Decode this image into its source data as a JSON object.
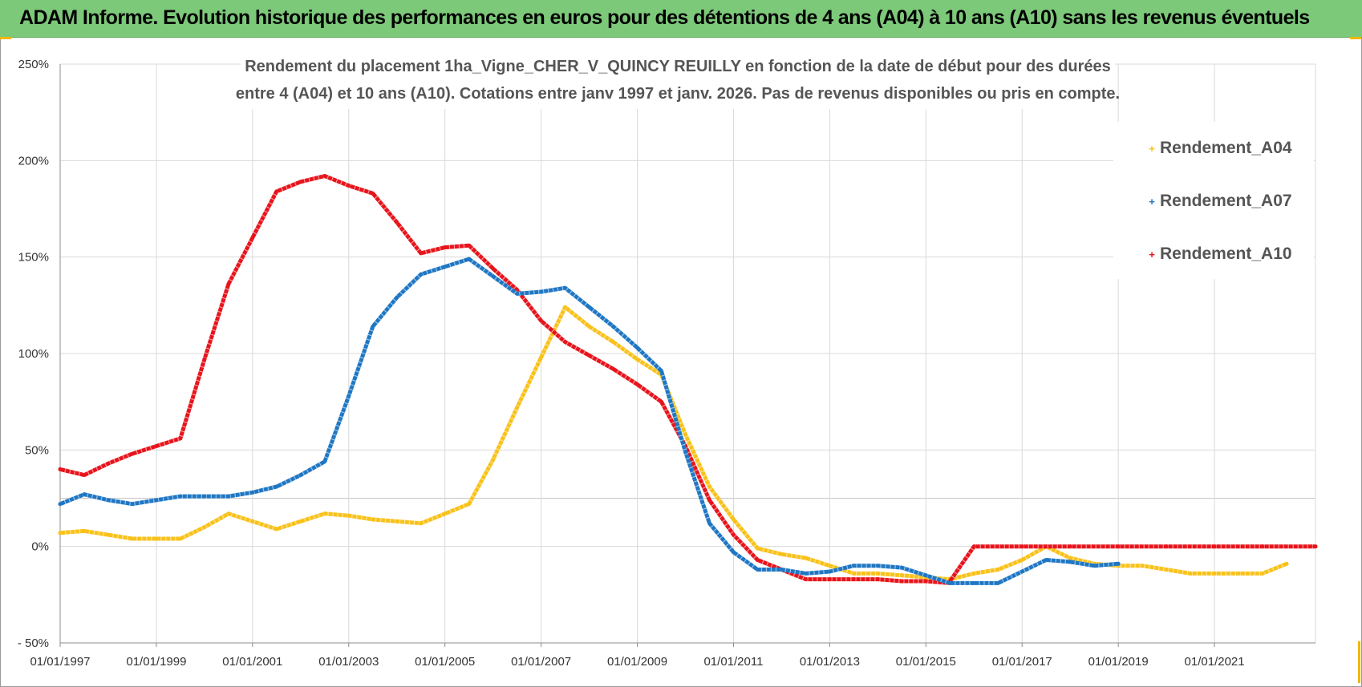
{
  "header": {
    "title": "ADAM Informe. Evolution historique des performances en euros pour des détentions de 4 ans (A04) à 10 ans (A10) sans les revenus éventuels",
    "background": "#7dc97a"
  },
  "chart_data": {
    "type": "line",
    "title_lines": [
      "Rendement du placement 1ha_Vigne_CHER_V_QUINCY REUILLY en fonction de la date de début pour des durées",
      "entre 4 (A04) et 10 ans (A10).  Cotations entre janv 1997 et janv. 2026. Pas de revenus disponibles ou pris en compte."
    ],
    "xlabel": "",
    "ylabel": "",
    "xlim": [
      1997.0,
      2023.1
    ],
    "ylim": [
      -50,
      250
    ],
    "x_ticks": [
      {
        "x": 1997,
        "label": "01/01/1997"
      },
      {
        "x": 1999,
        "label": "01/01/1999"
      },
      {
        "x": 2001,
        "label": "01/01/2001"
      },
      {
        "x": 2003,
        "label": "01/01/2003"
      },
      {
        "x": 2005,
        "label": "01/01/2005"
      },
      {
        "x": 2007,
        "label": "01/01/2007"
      },
      {
        "x": 2009,
        "label": "01/01/2009"
      },
      {
        "x": 2011,
        "label": "01/01/2011"
      },
      {
        "x": 2013,
        "label": "01/01/2013"
      },
      {
        "x": 2015,
        "label": "01/01/2015"
      },
      {
        "x": 2017,
        "label": "01/01/2017"
      },
      {
        "x": 2019,
        "label": "01/01/2019"
      },
      {
        "x": 2021,
        "label": "01/01/2021"
      }
    ],
    "x_gridlines": [
      1997,
      1999,
      2001,
      2003,
      2005,
      2007,
      2009,
      2011,
      2013,
      2015,
      2017,
      2019,
      2021,
      2023.1
    ],
    "y_ticks": [
      {
        "y": 250,
        "label": "250%"
      },
      {
        "y": 200,
        "label": "200%"
      },
      {
        "y": 150,
        "label": "150%"
      },
      {
        "y": 100,
        "label": "100%"
      },
      {
        "y": 50,
        "label": "50%"
      },
      {
        "y": 0,
        "label": "0%"
      },
      {
        "y": -50,
        "label": "- 50%"
      }
    ],
    "y_gridlines": [
      250,
      200,
      150,
      100,
      50,
      25,
      0,
      -50
    ],
    "grid": true,
    "legend_position": "top-right",
    "series": [
      {
        "name": "Rendement_A04",
        "color": "#f9c21b",
        "x": [
          1997.0,
          1997.5,
          1998.0,
          1998.5,
          1999.0,
          1999.5,
          2000.0,
          2000.5,
          2001.0,
          2001.5,
          2002.0,
          2002.5,
          2003.0,
          2003.5,
          2004.0,
          2004.5,
          2005.0,
          2005.5,
          2006.0,
          2006.5,
          2007.0,
          2007.5,
          2008.0,
          2008.5,
          2009.0,
          2009.5,
          2010.0,
          2010.5,
          2011.0,
          2011.5,
          2012.0,
          2012.5,
          2013.0,
          2013.5,
          2014.0,
          2014.5,
          2015.0,
          2015.5,
          2016.0,
          2016.5,
          2017.0,
          2017.5,
          2018.0,
          2018.5,
          2019.0,
          2019.5,
          2020.0,
          2020.5,
          2021.0,
          2021.5,
          2022.0,
          2022.5
        ],
        "values": [
          7,
          8,
          6,
          4,
          4,
          4,
          10,
          17,
          13,
          9,
          13,
          17,
          16,
          14,
          13,
          12,
          17,
          22,
          45,
          72,
          98,
          124,
          114,
          106,
          97,
          89,
          58,
          31,
          14,
          -1,
          -4,
          -6,
          -10,
          -14,
          -14,
          -15,
          -16,
          -17,
          -14,
          -12,
          -7,
          0,
          -6,
          -9,
          -10,
          -10,
          -12,
          -14,
          -14,
          -14,
          -14,
          -9
        ]
      },
      {
        "name": "Rendement_A07",
        "color": "#1f77c4",
        "x": [
          1997.0,
          1997.5,
          1998.0,
          1998.5,
          1999.0,
          1999.5,
          2000.0,
          2000.5,
          2001.0,
          2001.5,
          2002.0,
          2002.5,
          2003.0,
          2003.5,
          2004.0,
          2004.5,
          2005.0,
          2005.5,
          2006.0,
          2006.5,
          2007.0,
          2007.5,
          2008.0,
          2008.5,
          2009.0,
          2009.5,
          2010.0,
          2010.5,
          2011.0,
          2011.5,
          2012.0,
          2012.5,
          2013.0,
          2013.5,
          2014.0,
          2014.5,
          2015.0,
          2015.5,
          2016.0,
          2016.5,
          2017.0,
          2017.5,
          2018.0,
          2018.5,
          2019.0
        ],
        "values": [
          22,
          27,
          24,
          22,
          24,
          26,
          26,
          26,
          28,
          31,
          37,
          44,
          78,
          114,
          129,
          141,
          145,
          149,
          140,
          131,
          132,
          134,
          124,
          114,
          103,
          91,
          49,
          12,
          -3,
          -12,
          -12,
          -14,
          -13,
          -10,
          -10,
          -11,
          -15,
          -19,
          -19,
          -19,
          -13,
          -7,
          -8,
          -10,
          -9
        ]
      },
      {
        "name": "Rendement_A10",
        "color": "#e8141c",
        "x": [
          1997.0,
          1997.5,
          1998.0,
          1998.5,
          1999.0,
          1999.5,
          2000.0,
          2000.5,
          2001.0,
          2001.5,
          2002.0,
          2002.5,
          2003.0,
          2003.5,
          2004.0,
          2004.5,
          2005.0,
          2005.5,
          2006.0,
          2006.5,
          2007.0,
          2007.5,
          2008.0,
          2008.5,
          2009.0,
          2009.5,
          2010.0,
          2010.5,
          2011.0,
          2011.5,
          2012.0,
          2012.5,
          2013.0,
          2013.5,
          2014.0,
          2014.5,
          2015.0,
          2015.5
        ],
        "values": [
          40,
          37,
          43,
          48,
          52,
          56,
          97,
          136,
          160,
          184,
          189,
          192,
          187,
          183,
          168,
          152,
          155,
          156,
          144,
          133,
          117,
          106,
          99,
          92,
          84,
          75,
          52,
          24,
          6,
          -7,
          -12,
          -17,
          -17,
          -17,
          -17,
          -18,
          -18,
          -19
        ]
      },
      {
        "name": "Rendement_A10_late",
        "color": "#e8141c",
        "legend": false,
        "x": [
          2015.5,
          2016.0,
          2017.0,
          2018.0,
          2019.0,
          2020.0,
          2021.0,
          2022.0,
          2023.0,
          2023.1
        ],
        "values": [
          -18,
          0,
          0,
          0,
          0,
          0,
          0,
          0,
          0,
          0
        ]
      }
    ],
    "legend": [
      {
        "label": "Rendement_A04",
        "color": "#f9c21b"
      },
      {
        "label": "Rendement_A07",
        "color": "#1f77c4"
      },
      {
        "label": "Rendement_A10",
        "color": "#e8141c"
      }
    ]
  }
}
